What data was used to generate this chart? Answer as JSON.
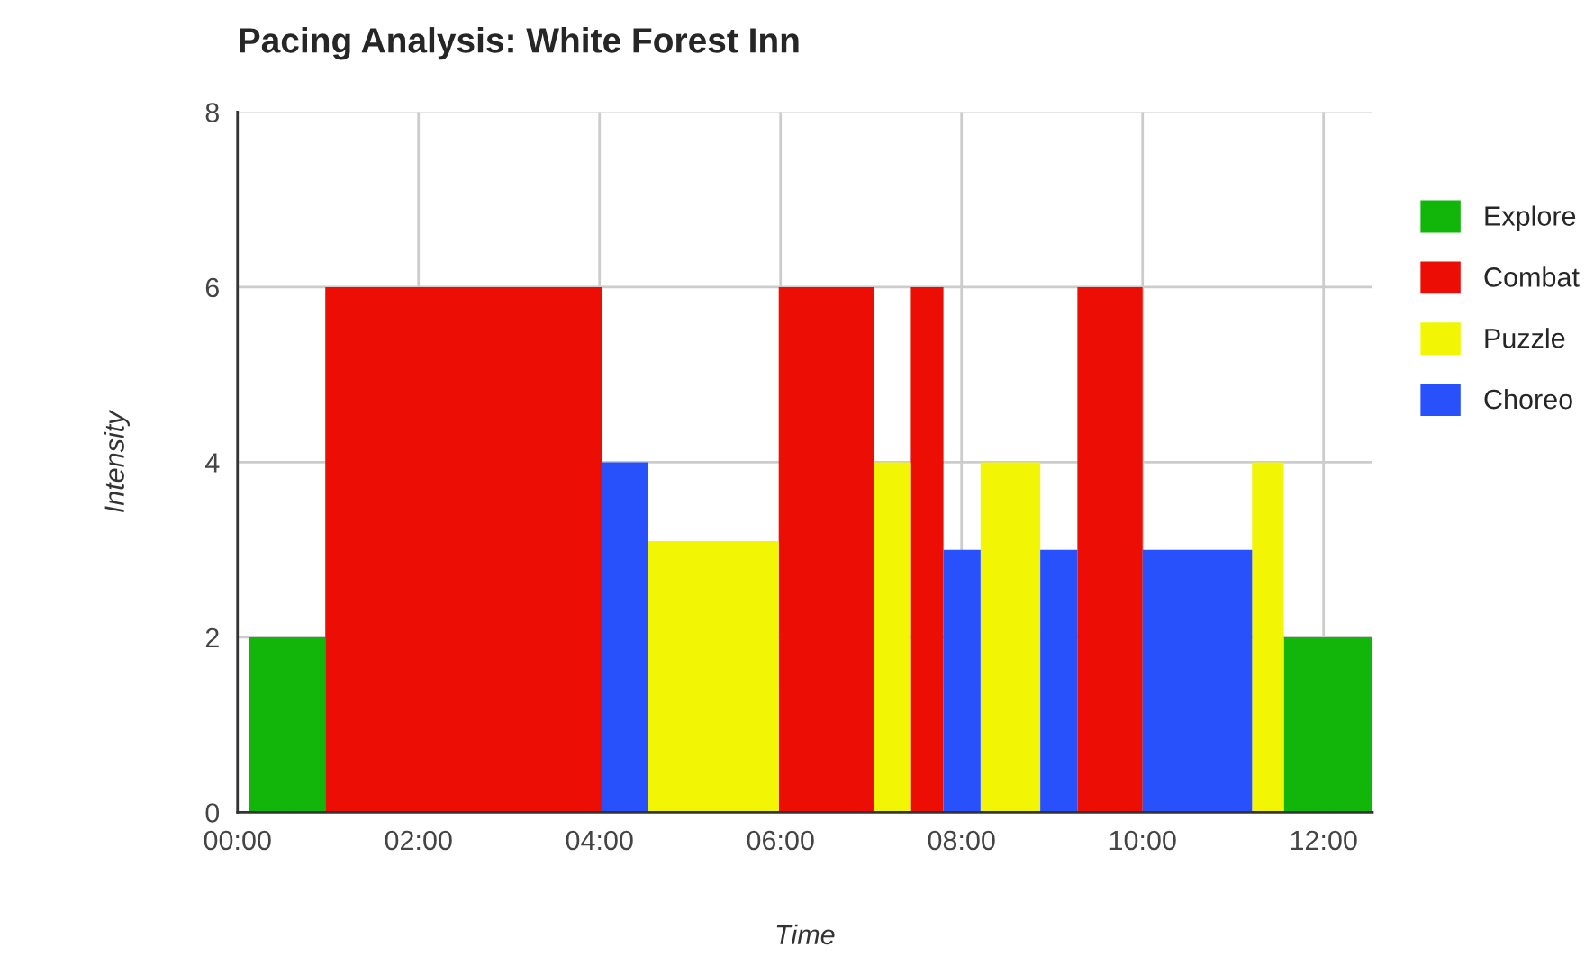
{
  "chart_data": {
    "type": "area",
    "title": "Pacing Analysis: White Forest Inn",
    "xlabel": "Time",
    "ylabel": "Intensity",
    "series": [
      {
        "name": "Explore",
        "color": "#12b60b",
        "x": [
          0.13,
          0.13,
          0.97,
          0.97,
          11.56,
          11.56,
          12.54
        ],
        "values": [
          0,
          2,
          2,
          0,
          0,
          2,
          2
        ]
      },
      {
        "name": "Combat",
        "color": "#ec0e04",
        "x": [
          0.97,
          0.97,
          4.03,
          4.03,
          5.98,
          5.98,
          7.03,
          7.03,
          7.44,
          7.44,
          7.8,
          7.8,
          9.28,
          9.28,
          10.0,
          10.0
        ],
        "values": [
          0,
          6,
          6,
          0,
          0,
          6,
          6,
          0,
          0,
          6,
          6,
          0,
          0,
          6,
          6,
          0
        ]
      },
      {
        "name": "Puzzle",
        "color": "#f2f504",
        "x": [
          4.54,
          4.54,
          5.98,
          5.98,
          7.03,
          7.03,
          7.44,
          7.44,
          8.21,
          8.21,
          8.87,
          8.87,
          11.21,
          11.21,
          11.56,
          11.56
        ],
        "values": [
          0,
          3.1,
          3.1,
          0,
          0,
          4,
          4,
          0,
          0,
          4,
          4,
          0,
          0,
          4,
          4,
          0
        ]
      },
      {
        "name": "Choreo",
        "color": "#2850fb",
        "x": [
          4.03,
          4.03,
          4.54,
          4.54,
          7.8,
          7.8,
          8.21,
          8.21,
          8.87,
          8.87,
          9.28,
          9.28,
          10.0,
          10.0,
          11.21,
          11.21
        ],
        "values": [
          0,
          4,
          4,
          0,
          0,
          3,
          3,
          0,
          0,
          3,
          3,
          0,
          0,
          3,
          3,
          0
        ]
      }
    ],
    "xlim": [
      0,
      12.54
    ],
    "xticks": [
      {
        "value": 0,
        "label": "00:00"
      },
      {
        "value": 2,
        "label": "02:00"
      },
      {
        "value": 4,
        "label": "04:00"
      },
      {
        "value": 6,
        "label": "06:00"
      },
      {
        "value": 8,
        "label": "08:00"
      },
      {
        "value": 10,
        "label": "10:00"
      },
      {
        "value": 12,
        "label": "12:00"
      }
    ],
    "ylim": [
      0,
      8
    ],
    "yticks": [
      0,
      2,
      4,
      6,
      8
    ],
    "grid": true,
    "legend": "right"
  }
}
